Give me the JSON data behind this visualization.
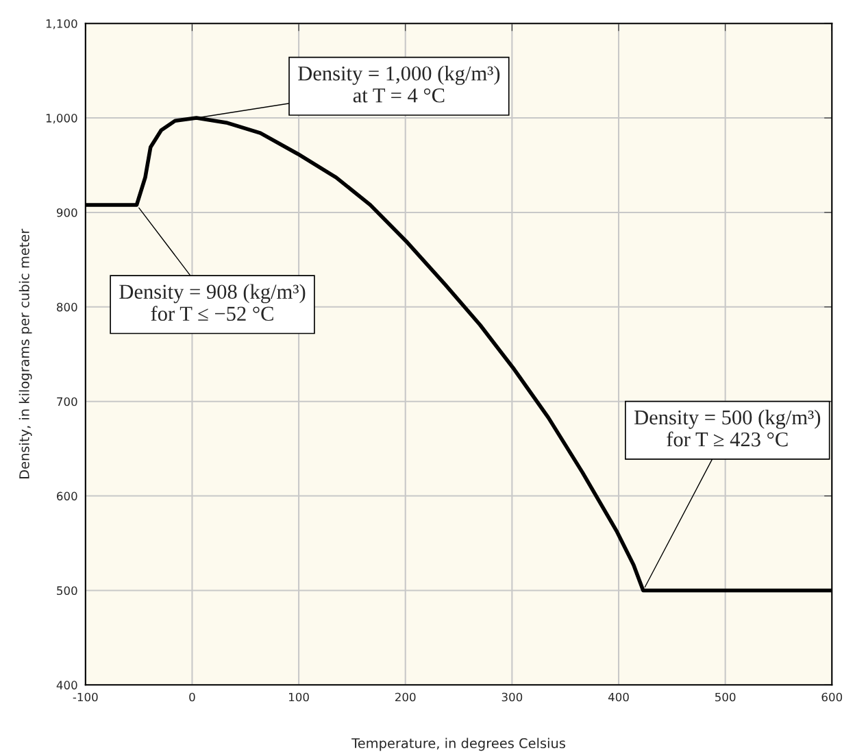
{
  "chart_data": {
    "type": "line",
    "xlabel": "Temperature, in degrees Celsius",
    "ylabel": "Density, in kilograms per cubic meter",
    "x": [
      -100,
      -52,
      -44,
      -39,
      -29,
      -16,
      4,
      32,
      64,
      99,
      135,
      167,
      202,
      237,
      270,
      302,
      334,
      366,
      398,
      414,
      423,
      600
    ],
    "series": [
      {
        "color": "#000000",
        "values": [
          908,
          908,
          937,
          969,
          987,
          997,
          1000,
          995,
          984,
          962,
          937,
          908,
          868,
          824,
          781,
          734,
          683,
          625,
          563,
          527,
          500,
          500
        ]
      }
    ],
    "xlim": [
      -100,
      600
    ],
    "ylim": [
      400,
      1100
    ],
    "xticks": [
      {
        "value": -100,
        "label": "-100"
      },
      0,
      100,
      200,
      300,
      400,
      500,
      600
    ],
    "yticks": [
      400,
      500,
      600,
      700,
      800,
      900,
      {
        "value": 1000,
        "label": "1,000"
      },
      {
        "value": 1100,
        "label": "1,100"
      }
    ],
    "grid": true,
    "marker": "none",
    "line_style": "solid",
    "legend": false,
    "annotations": [
      {
        "text": "Density = 1,000 (kg/m³)\nat T = 4 °C",
        "x": 4,
        "y": 1000
      },
      {
        "text": "Density = 908 (kg/m³)\nfor T ≤ −52 °C",
        "x": -52,
        "y": 908
      },
      {
        "text": "Density = 500 (kg/m³)\nfor T ≥ 423 °C",
        "x": 423,
        "y": 500
      }
    ]
  }
}
